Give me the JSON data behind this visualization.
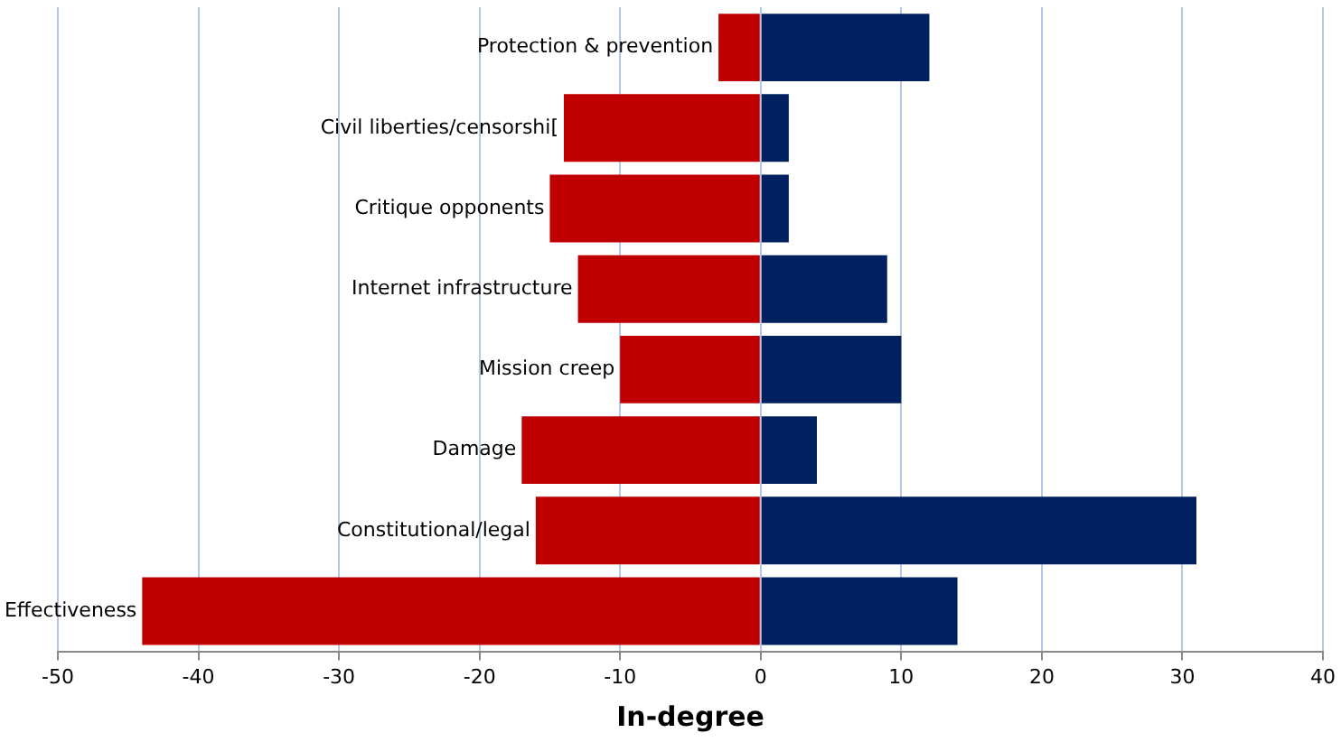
{
  "chart_data": {
    "type": "bar",
    "orientation": "horizontal",
    "stacked": true,
    "xlabel": "In-degree",
    "categories": [
      "Protection & prevention",
      "Civil liberties/censorshi[",
      "Critique opponents",
      "Internet infrastructure",
      "Mission creep",
      "Damage",
      "Constitutional/legal",
      "Effectiveness"
    ],
    "series": [
      {
        "color": "#c00000",
        "values": [
          -3,
          -14,
          -15,
          -13,
          -10,
          -17,
          -16,
          -44
        ]
      },
      {
        "color": "#002060",
        "values": [
          12,
          2,
          2,
          9,
          10,
          4,
          31,
          14
        ]
      }
    ],
    "xlim": [
      -50,
      40
    ],
    "xticks": [
      -50,
      -40,
      -30,
      -20,
      -10,
      0,
      10,
      20,
      30,
      40
    ],
    "grid": "x",
    "legend": false
  }
}
